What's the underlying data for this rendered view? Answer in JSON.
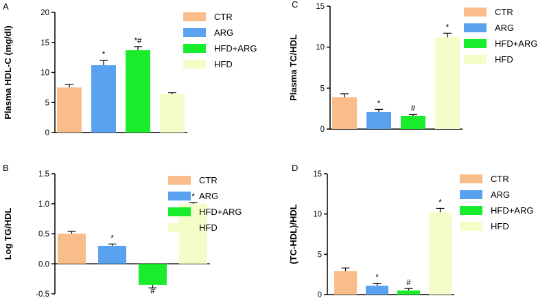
{
  "colors": {
    "CTR": "#f9bd8a",
    "ARG": "#5aa2f0",
    "HFD+ARG": "#19ec2b",
    "HFD": "#f4fcc7"
  },
  "chart_data": [
    {
      "panel": "A",
      "type": "bar",
      "ylabel": "Plasma HDL-C (mg/dl)",
      "ylim": [
        0,
        20
      ],
      "yticks": [
        0,
        5,
        10,
        15,
        20
      ],
      "categories": [
        "CTR",
        "ARG",
        "HFD+ARG",
        "HFD"
      ],
      "values": [
        7.5,
        11.2,
        13.7,
        6.4
      ],
      "errors": [
        0.5,
        0.8,
        0.6,
        0.25
      ],
      "annotations": [
        "",
        "*",
        "*#",
        ""
      ],
      "legend": [
        "CTR",
        "ARG",
        "HFD+ARG",
        "HFD"
      ]
    },
    {
      "panel": "B",
      "type": "bar",
      "ylabel": "Log TG/HDL",
      "ylim": [
        -0.5,
        1.5
      ],
      "yticks": [
        -0.5,
        0.0,
        0.5,
        1.0,
        1.5
      ],
      "ytick_labels": [
        "-0.5",
        "0.0",
        "0.5",
        "1.0",
        "1.5"
      ],
      "categories": [
        "CTR",
        "ARG",
        "HFD+ARG",
        "HFD"
      ],
      "values": [
        0.5,
        0.3,
        -0.35,
        1.0
      ],
      "errors": [
        0.04,
        0.03,
        0.05,
        0.02
      ],
      "annotations": [
        "",
        "*",
        "#",
        "*"
      ],
      "legend": [
        "CTR",
        "ARG",
        "HFD+ARG",
        "HFD"
      ]
    },
    {
      "panel": "C",
      "type": "bar",
      "ylabel": "Plasma TC/HDL",
      "ylim": [
        0,
        15
      ],
      "yticks": [
        0,
        5,
        10,
        15
      ],
      "categories": [
        "CTR",
        "ARG",
        "HFD+ARG",
        "HFD"
      ],
      "values": [
        3.9,
        2.1,
        1.6,
        11.2
      ],
      "errors": [
        0.4,
        0.3,
        0.2,
        0.5
      ],
      "annotations": [
        "",
        "*",
        "#",
        "*"
      ],
      "legend": [
        "CTR",
        "ARG",
        "HFD+ARG",
        "HFD"
      ]
    },
    {
      "panel": "D",
      "type": "bar",
      "ylabel": "(TC-HDL)/HDL",
      "ylim": [
        0,
        15
      ],
      "yticks": [
        0,
        5,
        10,
        15
      ],
      "categories": [
        "CTR",
        "ARG",
        "HFD+ARG",
        "HFD"
      ],
      "values": [
        2.9,
        1.1,
        0.5,
        10.2
      ],
      "errors": [
        0.4,
        0.3,
        0.25,
        0.5
      ],
      "annotations": [
        "",
        "*",
        "#",
        "*"
      ],
      "legend": [
        "CTR",
        "ARG",
        "HFD+ARG",
        "HFD"
      ]
    }
  ]
}
